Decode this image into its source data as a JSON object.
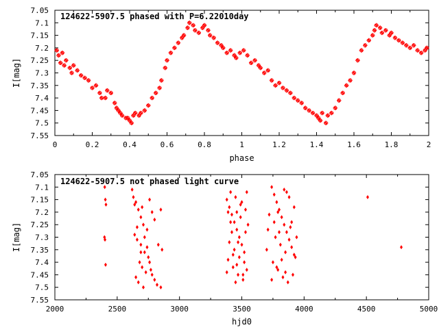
{
  "chart_data": [
    {
      "type": "scatter",
      "title": "124622-5907.5 phased with P=6.22010day",
      "xlabel": "phase",
      "ylabel": "I[mag]",
      "xlim": [
        0,
        2
      ],
      "ylim": [
        7.55,
        7.05
      ],
      "y_inverted": true,
      "grid": false,
      "legend": "none",
      "marker": "star",
      "color": "#ff0000",
      "xticks": [
        "0",
        "0.2",
        "0.4",
        "0.6",
        "0.8",
        "1",
        "1.2",
        "1.4",
        "1.6",
        "1.8",
        "2"
      ],
      "yticks": [
        "7.05",
        "7.1",
        "7.15",
        "7.2",
        "7.25",
        "7.3",
        "7.35",
        "7.4",
        "7.45",
        "7.5",
        "7.55"
      ],
      "points": [
        [
          0.01,
          7.21
        ],
        [
          0.02,
          7.23
        ],
        [
          0.03,
          7.26
        ],
        [
          0.04,
          7.22
        ],
        [
          0.05,
          7.27
        ],
        [
          0.06,
          7.25
        ],
        [
          0.08,
          7.28
        ],
        [
          0.09,
          7.3
        ],
        [
          0.1,
          7.27
        ],
        [
          0.12,
          7.29
        ],
        [
          0.14,
          7.31
        ],
        [
          0.16,
          7.32
        ],
        [
          0.18,
          7.33
        ],
        [
          0.2,
          7.36
        ],
        [
          0.22,
          7.35
        ],
        [
          0.24,
          7.38
        ],
        [
          0.25,
          7.4
        ],
        [
          0.27,
          7.4
        ],
        [
          0.28,
          7.37
        ],
        [
          0.3,
          7.38
        ],
        [
          0.32,
          7.42
        ],
        [
          0.33,
          7.44
        ],
        [
          0.34,
          7.45
        ],
        [
          0.35,
          7.46
        ],
        [
          0.36,
          7.47
        ],
        [
          0.38,
          7.48
        ],
        [
          0.39,
          7.48
        ],
        [
          0.4,
          7.49
        ],
        [
          0.41,
          7.5
        ],
        [
          0.42,
          7.47
        ],
        [
          0.43,
          7.46
        ],
        [
          0.45,
          7.47
        ],
        [
          0.46,
          7.46
        ],
        [
          0.48,
          7.45
        ],
        [
          0.5,
          7.43
        ],
        [
          0.52,
          7.4
        ],
        [
          0.54,
          7.38
        ],
        [
          0.56,
          7.36
        ],
        [
          0.57,
          7.33
        ],
        [
          0.59,
          7.28
        ],
        [
          0.6,
          7.25
        ],
        [
          0.62,
          7.22
        ],
        [
          0.64,
          7.2
        ],
        [
          0.66,
          7.18
        ],
        [
          0.68,
          7.16
        ],
        [
          0.69,
          7.15
        ],
        [
          0.71,
          7.12
        ],
        [
          0.72,
          7.1
        ],
        [
          0.74,
          7.11
        ],
        [
          0.75,
          7.13
        ],
        [
          0.77,
          7.14
        ],
        [
          0.79,
          7.12
        ],
        [
          0.8,
          7.11
        ],
        [
          0.82,
          7.13
        ],
        [
          0.83,
          7.15
        ],
        [
          0.85,
          7.16
        ],
        [
          0.87,
          7.18
        ],
        [
          0.89,
          7.19
        ],
        [
          0.9,
          7.2
        ],
        [
          0.92,
          7.22
        ],
        [
          0.94,
          7.21
        ],
        [
          0.96,
          7.23
        ],
        [
          0.97,
          7.24
        ],
        [
          0.99,
          7.22
        ],
        [
          1.01,
          7.21
        ],
        [
          1.03,
          7.23
        ],
        [
          1.05,
          7.26
        ],
        [
          1.07,
          7.25
        ],
        [
          1.09,
          7.27
        ],
        [
          1.1,
          7.28
        ],
        [
          1.12,
          7.3
        ],
        [
          1.14,
          7.29
        ],
        [
          1.16,
          7.33
        ],
        [
          1.18,
          7.35
        ],
        [
          1.2,
          7.34
        ],
        [
          1.22,
          7.36
        ],
        [
          1.24,
          7.37
        ],
        [
          1.26,
          7.38
        ],
        [
          1.28,
          7.4
        ],
        [
          1.3,
          7.41
        ],
        [
          1.32,
          7.42
        ],
        [
          1.34,
          7.44
        ],
        [
          1.36,
          7.45
        ],
        [
          1.38,
          7.46
        ],
        [
          1.4,
          7.47
        ],
        [
          1.41,
          7.48
        ],
        [
          1.42,
          7.49
        ],
        [
          1.43,
          7.46
        ],
        [
          1.45,
          7.5
        ],
        [
          1.46,
          7.47
        ],
        [
          1.48,
          7.46
        ],
        [
          1.5,
          7.44
        ],
        [
          1.52,
          7.41
        ],
        [
          1.54,
          7.38
        ],
        [
          1.56,
          7.35
        ],
        [
          1.58,
          7.33
        ],
        [
          1.6,
          7.3
        ],
        [
          1.62,
          7.25
        ],
        [
          1.64,
          7.21
        ],
        [
          1.66,
          7.19
        ],
        [
          1.68,
          7.17
        ],
        [
          1.7,
          7.15
        ],
        [
          1.71,
          7.13
        ],
        [
          1.72,
          7.11
        ],
        [
          1.74,
          7.12
        ],
        [
          1.75,
          7.14
        ],
        [
          1.77,
          7.13
        ],
        [
          1.79,
          7.15
        ],
        [
          1.8,
          7.14
        ],
        [
          1.82,
          7.16
        ],
        [
          1.84,
          7.17
        ],
        [
          1.86,
          7.18
        ],
        [
          1.88,
          7.19
        ],
        [
          1.9,
          7.2
        ],
        [
          1.92,
          7.19
        ],
        [
          1.94,
          7.21
        ],
        [
          1.96,
          7.22
        ],
        [
          1.98,
          7.21
        ],
        [
          1.99,
          7.2
        ]
      ]
    },
    {
      "type": "scatter",
      "title": "124622-5907.5 not phased light curve",
      "xlabel": "hjd0",
      "ylabel": "I[mag]",
      "xlim": [
        2000,
        5000
      ],
      "ylim": [
        7.55,
        7.05
      ],
      "y_inverted": true,
      "grid": false,
      "legend": "none",
      "marker": "diamond",
      "color": "#ff0000",
      "xticks": [
        "2000",
        "2500",
        "3000",
        "3500",
        "4000",
        "4500",
        "5000"
      ],
      "yticks": [
        "7.05",
        "7.1",
        "7.15",
        "7.2",
        "7.25",
        "7.3",
        "7.35",
        "7.4",
        "7.45",
        "7.5",
        "7.55"
      ],
      "points": [
        [
          2400,
          7.1
        ],
        [
          2405,
          7.15
        ],
        [
          2410,
          7.17
        ],
        [
          2398,
          7.3
        ],
        [
          2402,
          7.31
        ],
        [
          2407,
          7.41
        ],
        [
          2630,
          7.14
        ],
        [
          2650,
          7.16
        ],
        [
          2670,
          7.19
        ],
        [
          2690,
          7.22
        ],
        [
          2710,
          7.25
        ],
        [
          2740,
          7.27
        ],
        [
          2760,
          7.15
        ],
        [
          2780,
          7.2
        ],
        [
          2640,
          7.29
        ],
        [
          2660,
          7.31
        ],
        [
          2690,
          7.33
        ],
        [
          2720,
          7.36
        ],
        [
          2750,
          7.38
        ],
        [
          2680,
          7.4
        ],
        [
          2700,
          7.42
        ],
        [
          2730,
          7.44
        ],
        [
          2650,
          7.46
        ],
        [
          2670,
          7.48
        ],
        [
          2710,
          7.5
        ],
        [
          2780,
          7.45
        ],
        [
          2800,
          7.47
        ],
        [
          2820,
          7.49
        ],
        [
          2850,
          7.5
        ],
        [
          2830,
          7.33
        ],
        [
          2860,
          7.35
        ],
        [
          2640,
          7.17
        ],
        [
          2700,
          7.18
        ],
        [
          2720,
          7.3
        ],
        [
          2760,
          7.4
        ],
        [
          2800,
          7.23
        ],
        [
          2850,
          7.19
        ],
        [
          2620,
          7.11
        ],
        [
          2660,
          7.26
        ],
        [
          2740,
          7.34
        ],
        [
          2770,
          7.43
        ],
        [
          2690,
          7.36
        ],
        [
          3380,
          7.15
        ],
        [
          3400,
          7.18
        ],
        [
          3420,
          7.21
        ],
        [
          3440,
          7.24
        ],
        [
          3460,
          7.27
        ],
        [
          3480,
          7.3
        ],
        [
          3500,
          7.33
        ],
        [
          3520,
          7.36
        ],
        [
          3410,
          7.12
        ],
        [
          3450,
          7.14
        ],
        [
          3490,
          7.17
        ],
        [
          3530,
          7.19
        ],
        [
          3390,
          7.39
        ],
        [
          3430,
          7.42
        ],
        [
          3470,
          7.45
        ],
        [
          3510,
          7.47
        ],
        [
          3540,
          7.43
        ],
        [
          3400,
          7.32
        ],
        [
          3440,
          7.35
        ],
        [
          3480,
          7.38
        ],
        [
          3520,
          7.4
        ],
        [
          3550,
          7.25
        ],
        [
          3420,
          7.28
        ],
        [
          3460,
          7.2
        ],
        [
          3500,
          7.16
        ],
        [
          3380,
          7.44
        ],
        [
          3450,
          7.48
        ],
        [
          3540,
          7.12
        ],
        [
          3410,
          7.24
        ],
        [
          3470,
          7.32
        ],
        [
          3530,
          7.28
        ],
        [
          3490,
          7.22
        ],
        [
          3430,
          7.37
        ],
        [
          3510,
          7.45
        ],
        [
          3460,
          7.41
        ],
        [
          3390,
          7.2
        ],
        [
          3740,
          7.1
        ],
        [
          3760,
          7.13
        ],
        [
          3780,
          7.16
        ],
        [
          3800,
          7.19
        ],
        [
          3820,
          7.22
        ],
        [
          3840,
          7.25
        ],
        [
          3860,
          7.28
        ],
        [
          3880,
          7.31
        ],
        [
          3900,
          7.34
        ],
        [
          3920,
          7.37
        ],
        [
          3750,
          7.4
        ],
        [
          3790,
          7.43
        ],
        [
          3830,
          7.46
        ],
        [
          3870,
          7.48
        ],
        [
          3910,
          7.45
        ],
        [
          3930,
          7.38
        ],
        [
          3770,
          7.3
        ],
        [
          3810,
          7.33
        ],
        [
          3850,
          7.36
        ],
        [
          3890,
          7.26
        ],
        [
          3720,
          7.21
        ],
        [
          3760,
          7.24
        ],
        [
          3800,
          7.28
        ],
        [
          3840,
          7.11
        ],
        [
          3880,
          7.14
        ],
        [
          3920,
          7.18
        ],
        [
          3700,
          7.35
        ],
        [
          3740,
          7.47
        ],
        [
          3780,
          7.42
        ],
        [
          3860,
          7.12
        ],
        [
          3900,
          7.24
        ],
        [
          3820,
          7.39
        ],
        [
          3940,
          7.3
        ],
        [
          3710,
          7.27
        ],
        [
          3790,
          7.2
        ],
        [
          3850,
          7.44
        ],
        [
          4510,
          7.14
        ],
        [
          4780,
          7.34
        ]
      ]
    }
  ]
}
